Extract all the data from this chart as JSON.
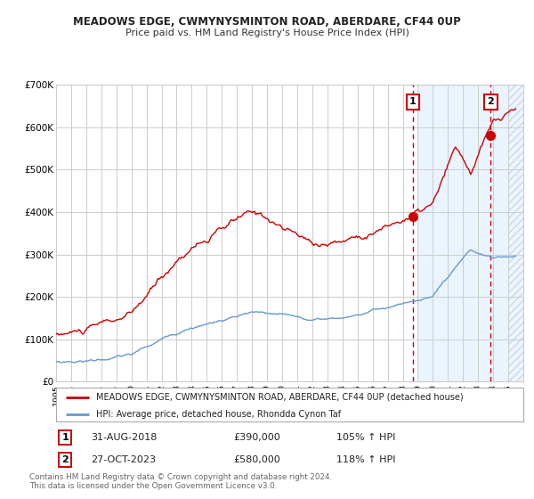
{
  "title": "MEADOWS EDGE, CWMYNYSMINTON ROAD, ABERDARE, CF44 0UP",
  "subtitle": "Price paid vs. HM Land Registry's House Price Index (HPI)",
  "legend_line1": "MEADOWS EDGE, CWMYNYSMINTON ROAD, ABERDARE, CF44 0UP (detached house)",
  "legend_line2": "HPI: Average price, detached house, Rhondda Cynon Taf",
  "annotation1_date": "31-AUG-2018",
  "annotation1_price": "£390,000",
  "annotation1_hpi": "105% ↑ HPI",
  "annotation2_date": "27-OCT-2023",
  "annotation2_price": "£580,000",
  "annotation2_hpi": "118% ↑ HPI",
  "footer": "Contains HM Land Registry data © Crown copyright and database right 2024.\nThis data is licensed under the Open Government Licence v3.0.",
  "red_color": "#cc0000",
  "blue_color": "#6699cc",
  "shade_color": "#ddeeff",
  "grid_color": "#cccccc",
  "ylim": [
    0,
    700000
  ],
  "xlim_min": 1995,
  "xlim_max": 2026,
  "sale1_x": 2018.667,
  "sale1_y": 390000,
  "sale2_x": 2023.833,
  "sale2_y": 580000,
  "shade_start": 2019.0,
  "hatch_start": 2025.0
}
